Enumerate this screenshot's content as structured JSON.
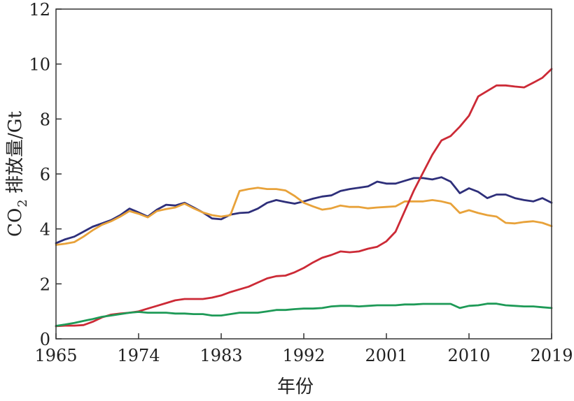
{
  "chart_data": {
    "type": "line",
    "title": "",
    "xlabel": "年份",
    "ylabel_prefix": "CO",
    "ylabel_sub": "2",
    "ylabel_suffix": " 排放量/Gt",
    "xlim": [
      1965,
      2019
    ],
    "ylim": [
      0,
      12
    ],
    "x_ticks": [
      1965,
      1974,
      1983,
      1992,
      2001,
      2010,
      2019
    ],
    "y_ticks": [
      0,
      2,
      4,
      6,
      8,
      10,
      12
    ],
    "grid": false,
    "legend": "none",
    "series": [
      {
        "color": "#2e2f7a",
        "x": [
          1965,
          1966,
          1967,
          1968,
          1969,
          1970,
          1971,
          1972,
          1973,
          1974,
          1975,
          1976,
          1977,
          1978,
          1979,
          1980,
          1981,
          1982,
          1983,
          1984,
          1985,
          1986,
          1987,
          1988,
          1989,
          1990,
          1991,
          1992,
          1993,
          1994,
          1995,
          1996,
          1997,
          1998,
          1999,
          2000,
          2001,
          2002,
          2003,
          2004,
          2005,
          2006,
          2007,
          2008,
          2009,
          2010,
          2011,
          2012,
          2013,
          2014,
          2015,
          2016,
          2017,
          2018,
          2019
        ],
        "y": [
          3.48,
          3.62,
          3.72,
          3.9,
          4.08,
          4.2,
          4.32,
          4.5,
          4.74,
          4.6,
          4.45,
          4.7,
          4.88,
          4.85,
          4.95,
          4.78,
          4.6,
          4.38,
          4.35,
          4.52,
          4.58,
          4.6,
          4.74,
          4.95,
          5.05,
          4.98,
          4.92,
          5.0,
          5.1,
          5.18,
          5.22,
          5.38,
          5.45,
          5.5,
          5.55,
          5.72,
          5.65,
          5.65,
          5.75,
          5.85,
          5.85,
          5.8,
          5.88,
          5.72,
          5.3,
          5.48,
          5.35,
          5.12,
          5.25,
          5.25,
          5.12,
          5.05,
          5.0,
          5.12,
          4.95
        ]
      },
      {
        "color": "#e8a23a",
        "x": [
          1965,
          1966,
          1967,
          1968,
          1969,
          1970,
          1971,
          1972,
          1973,
          1974,
          1975,
          1976,
          1977,
          1978,
          1979,
          1980,
          1981,
          1982,
          1983,
          1984,
          1985,
          1986,
          1987,
          1988,
          1989,
          1990,
          1991,
          1992,
          1993,
          1994,
          1995,
          1996,
          1997,
          1998,
          1999,
          2000,
          2001,
          2002,
          2003,
          2004,
          2005,
          2006,
          2007,
          2008,
          2009,
          2010,
          2011,
          2012,
          2013,
          2014,
          2015,
          2016,
          2017,
          2018,
          2019
        ],
        "y": [
          3.42,
          3.46,
          3.52,
          3.72,
          3.95,
          4.15,
          4.28,
          4.45,
          4.65,
          4.55,
          4.42,
          4.65,
          4.72,
          4.78,
          4.92,
          4.75,
          4.6,
          4.5,
          4.45,
          4.5,
          5.38,
          5.45,
          5.5,
          5.45,
          5.45,
          5.4,
          5.2,
          4.95,
          4.82,
          4.7,
          4.75,
          4.85,
          4.8,
          4.8,
          4.75,
          4.78,
          4.8,
          4.82,
          5.0,
          5.0,
          5.0,
          5.05,
          5.0,
          4.92,
          4.58,
          4.68,
          4.58,
          4.5,
          4.45,
          4.22,
          4.2,
          4.25,
          4.28,
          4.22,
          4.1
        ]
      },
      {
        "color": "#cc2a36",
        "x": [
          1965,
          1966,
          1967,
          1968,
          1969,
          1970,
          1971,
          1972,
          1973,
          1974,
          1975,
          1976,
          1977,
          1978,
          1979,
          1980,
          1981,
          1982,
          1983,
          1984,
          1985,
          1986,
          1987,
          1988,
          1989,
          1990,
          1991,
          1992,
          1993,
          1994,
          1995,
          1996,
          1997,
          1998,
          1999,
          2000,
          2001,
          2002,
          2003,
          2004,
          2005,
          2006,
          2007,
          2008,
          2009,
          2010,
          2011,
          2012,
          2013,
          2014,
          2015,
          2016,
          2017,
          2018,
          2019
        ],
        "y": [
          0.46,
          0.48,
          0.48,
          0.5,
          0.62,
          0.78,
          0.88,
          0.92,
          0.95,
          1.0,
          1.1,
          1.2,
          1.3,
          1.4,
          1.45,
          1.45,
          1.45,
          1.5,
          1.58,
          1.7,
          1.8,
          1.9,
          2.05,
          2.2,
          2.28,
          2.3,
          2.42,
          2.58,
          2.78,
          2.95,
          3.05,
          3.18,
          3.15,
          3.18,
          3.28,
          3.35,
          3.55,
          3.9,
          4.65,
          5.4,
          6.05,
          6.7,
          7.22,
          7.38,
          7.72,
          8.12,
          8.82,
          9.02,
          9.22,
          9.22,
          9.18,
          9.15,
          9.32,
          9.5,
          9.82
        ]
      },
      {
        "color": "#1e9a57",
        "x": [
          1965,
          1966,
          1967,
          1968,
          1969,
          1970,
          1971,
          1972,
          1973,
          1974,
          1975,
          1976,
          1977,
          1978,
          1979,
          1980,
          1981,
          1982,
          1983,
          1984,
          1985,
          1986,
          1987,
          1988,
          1989,
          1990,
          1991,
          1992,
          1993,
          1994,
          1995,
          1996,
          1997,
          1998,
          1999,
          2000,
          2001,
          2002,
          2003,
          2004,
          2005,
          2006,
          2007,
          2008,
          2009,
          2010,
          2011,
          2012,
          2013,
          2014,
          2015,
          2016,
          2017,
          2018,
          2019
        ],
        "y": [
          0.47,
          0.52,
          0.58,
          0.65,
          0.72,
          0.8,
          0.85,
          0.9,
          0.95,
          0.98,
          0.95,
          0.95,
          0.95,
          0.92,
          0.92,
          0.9,
          0.9,
          0.85,
          0.85,
          0.9,
          0.95,
          0.95,
          0.95,
          1.0,
          1.05,
          1.05,
          1.08,
          1.1,
          1.1,
          1.12,
          1.18,
          1.2,
          1.2,
          1.18,
          1.2,
          1.22,
          1.22,
          1.22,
          1.25,
          1.25,
          1.27,
          1.27,
          1.27,
          1.27,
          1.12,
          1.2,
          1.22,
          1.28,
          1.28,
          1.22,
          1.2,
          1.18,
          1.18,
          1.15,
          1.12
        ]
      }
    ]
  }
}
